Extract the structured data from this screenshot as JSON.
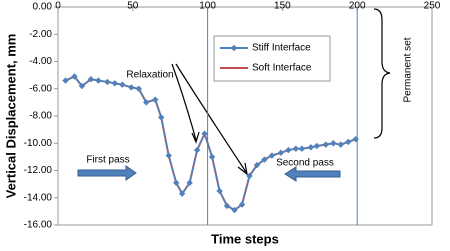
{
  "chart_data": {
    "type": "line",
    "x_label": "Time steps",
    "y_label": "Vertical Displacement, mm",
    "x": [
      5,
      11,
      16,
      22,
      27,
      33,
      38,
      43,
      49,
      54,
      59,
      65,
      69,
      74,
      79,
      83,
      88,
      93,
      98,
      103,
      108,
      113,
      118,
      123,
      128,
      133,
      138,
      143,
      149,
      154,
      159,
      163,
      169,
      173,
      179,
      184,
      189,
      194,
      199
    ],
    "series": [
      {
        "name": "Stiff Interface",
        "color": "#4f81bd",
        "marker": "diamond",
        "values": [
          -5.4,
          -5.1,
          -5.8,
          -5.3,
          -5.4,
          -5.5,
          -5.6,
          -5.7,
          -5.9,
          -6.0,
          -7.0,
          -6.8,
          -8.1,
          -10.9,
          -12.9,
          -13.7,
          -12.9,
          -10.5,
          -9.3,
          -11.0,
          -13.5,
          -14.6,
          -14.9,
          -14.5,
          -12.4,
          -11.6,
          -11.2,
          -10.9,
          -10.7,
          -10.5,
          -10.4,
          -10.4,
          -10.3,
          -10.2,
          -10.1,
          -10.0,
          -10.1,
          -9.9,
          -9.7
        ]
      },
      {
        "name": "Soft Interface",
        "color": "#c0504d",
        "values": [
          -5.4,
          -5.1,
          -5.8,
          -5.3,
          -5.4,
          -5.5,
          -5.6,
          -5.7,
          -5.9,
          -6.0,
          -7.0,
          -6.8,
          -8.1,
          -10.9,
          -12.9,
          -13.7,
          -12.9,
          -10.5,
          -9.3,
          -11.0,
          -13.5,
          -14.6,
          -14.9,
          -14.5,
          -12.4,
          -11.6,
          -11.2,
          -10.9,
          -10.7,
          -10.5,
          -10.4,
          -10.4,
          -10.3,
          -10.2,
          -10.1,
          -10.0,
          -10.1,
          -9.9,
          -9.7
        ]
      }
    ],
    "xlim": [
      0,
      250
    ],
    "xticks": [
      0,
      50,
      100,
      150,
      200,
      250
    ],
    "ylim": [
      -16,
      0
    ],
    "yticks": [
      {
        "value": 0,
        "label": "0.00"
      },
      {
        "value": -2,
        "label": "-2.00"
      },
      {
        "value": -4,
        "label": "-4.00"
      },
      {
        "value": -6,
        "label": "-6.00"
      },
      {
        "value": -8,
        "label": "-8.00"
      },
      {
        "value": -10,
        "label": "-10.00"
      },
      {
        "value": -12,
        "label": "-12.00"
      },
      {
        "value": -14,
        "label": "-14.00"
      },
      {
        "value": -16,
        "label": "-16.00"
      }
    ],
    "vlines": [
      100,
      200
    ],
    "annotations": [
      "Relaxation",
      "First pass",
      "Second pass",
      "Permanent set"
    ]
  }
}
